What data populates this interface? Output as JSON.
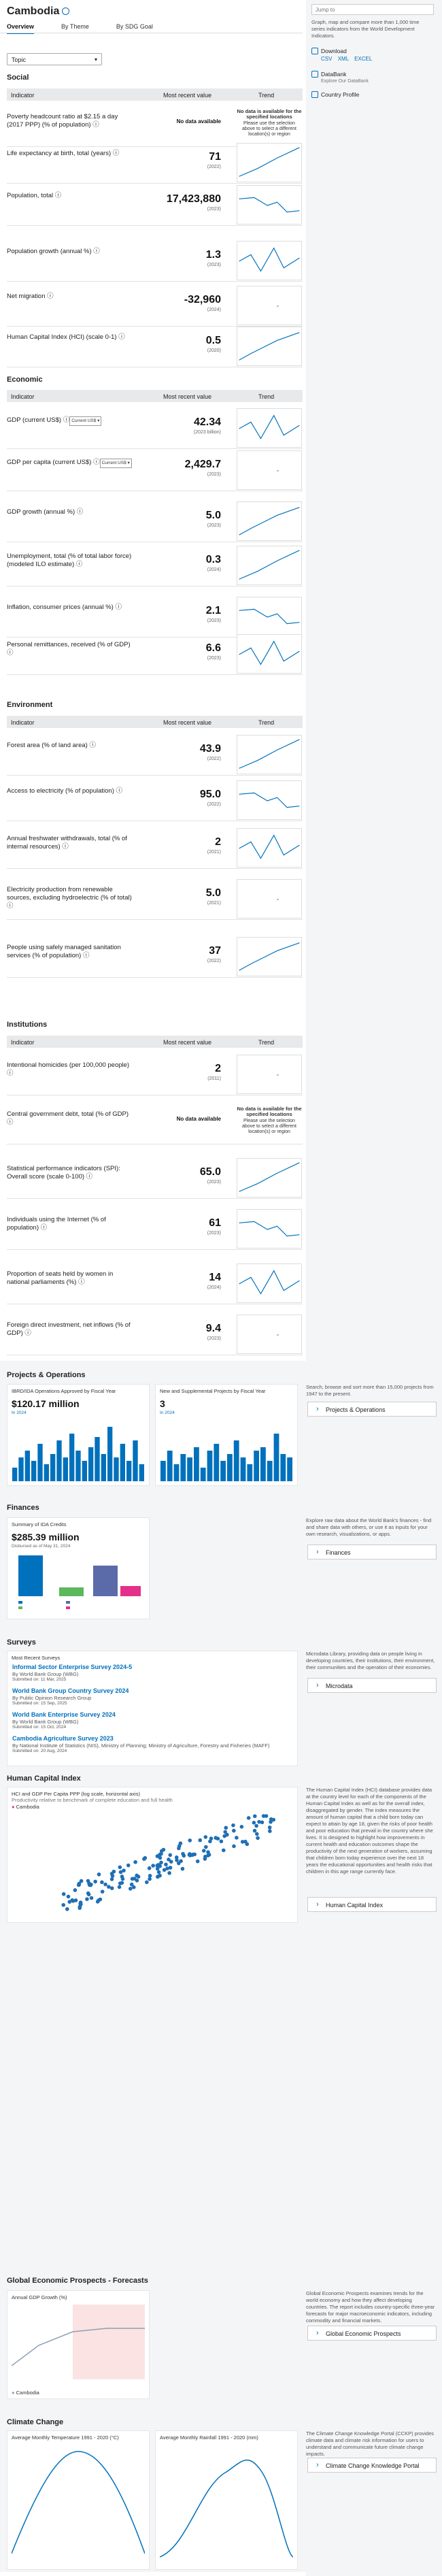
{
  "country": "Cambodia",
  "tabs": [
    "Overview",
    "By Theme",
    "By SDG Goal"
  ],
  "topic_label": "Topic",
  "rail": {
    "jump_placeholder": "Jump to",
    "intro": "Graph, map and compare more than 1,000 time series indicators from the World Development Indicators.",
    "download": "Download",
    "formats": [
      "CSV",
      "XML",
      "EXCEL"
    ],
    "databank": "DataBank",
    "databank_sub": "Explore Our DataBank",
    "profile": "Country Profile"
  },
  "table_headers": {
    "indicator": "Indicator",
    "value": "Most recent value",
    "trend": "Trend"
  },
  "no_data": "No data available",
  "no_data_trend_title": "No data is available for the specified locations",
  "no_data_trend_body": "Please use the selection above to select a different location(s) or region",
  "sections": [
    {
      "title": "Social",
      "rows": [
        {
          "label": "Poverty headcount ratio at $2.15 a day (2017 PPP) (% of population)",
          "value": "",
          "year": "",
          "nodata": true
        },
        {
          "label": "Life expectancy at birth, total (years)",
          "value": "71",
          "year": "(2022)"
        },
        {
          "label": "Population, total",
          "value": "17,423,880",
          "year": "(2023)"
        },
        {
          "label": "Population growth (annual %)",
          "value": "1.3",
          "year": "(2023)"
        },
        {
          "label": "Net migration",
          "value": "-32,960",
          "year": "(2024)"
        },
        {
          "label": "Human Capital Index (HCI) (scale 0-1)",
          "value": "0.5",
          "year": "(2020)"
        }
      ]
    },
    {
      "title": "Economic",
      "rows": [
        {
          "label": "GDP (current US$)",
          "select": "Current US$",
          "value": "42.34",
          "year": "(2023 billion)"
        },
        {
          "label": "GDP per capita (current US$)",
          "select": "Current US$",
          "value": "2,429.7",
          "year": "(2023)"
        },
        {
          "label": "GDP growth (annual %)",
          "value": "5.0",
          "year": "(2023)"
        },
        {
          "label": "Unemployment, total (% of total labor force) (modeled ILO estimate)",
          "value": "0.3",
          "year": "(2024)"
        },
        {
          "label": "Inflation, consumer prices (annual %)",
          "value": "2.1",
          "year": "(2023)"
        },
        {
          "label": "Personal remittances, received (% of GDP)",
          "value": "6.6",
          "year": "(2023)"
        }
      ]
    },
    {
      "title": "Environment",
      "rows": [
        {
          "label": "Forest area (% of land area)",
          "value": "43.9",
          "year": "(2022)"
        },
        {
          "label": "Access to electricity (% of population)",
          "value": "95.0",
          "year": "(2022)"
        },
        {
          "label": "Annual freshwater withdrawals, total (% of internal resources)",
          "value": "2",
          "year": "(2021)"
        },
        {
          "label": "Electricity production from renewable sources, excluding hydroelectric (% of total)",
          "value": "5.0",
          "year": "(2021)"
        },
        {
          "label": "People using safely managed sanitation services (% of population)",
          "value": "37",
          "year": "(2022)"
        }
      ]
    },
    {
      "title": "Institutions",
      "rows": [
        {
          "label": "Intentional homicides (per 100,000 people)",
          "value": "2",
          "year": "(2011)"
        },
        {
          "label": "Central government debt, total (% of GDP)",
          "value": "",
          "year": "",
          "nodata": true
        },
        {
          "label": "Statistical performance indicators (SPI): Overall score (scale 0-100)",
          "value": "65.0",
          "year": "(2023)"
        },
        {
          "label": "Individuals using the Internet (% of population)",
          "value": "61",
          "year": "(2023)"
        },
        {
          "label": "Proportion of seats held by women in national parliaments (%)",
          "value": "14",
          "year": "(2024)"
        },
        {
          "label": "Foreign direct investment, net inflows (% of GDP)",
          "value": "9.4",
          "year": "(2023)"
        }
      ]
    }
  ],
  "projects": {
    "title": "Projects & Operations",
    "c1_title": "IBRD/IDA Operations Approved by Fiscal Year",
    "c1_value": "$120.17 million",
    "c1_link": "In 2024",
    "c2_title": "New and Supplemental Projects by Fiscal Year",
    "c2_value": "3",
    "c2_link": "In 2024",
    "side": "Search, browse and sort more than 15,000 projects from 1947 to the present.",
    "button": "Projects & Operations"
  },
  "finances": {
    "title": "Finances",
    "c_title": "Summary of IDA Credits",
    "c_value": "$285.39 million",
    "c_link": "Disbursed as of May 31, 2024",
    "side": "Explore raw data about the World Bank's finances - find and share data with others, or use it as inputs for your own research, visualizations, or apps.",
    "button": "Finances"
  },
  "surveys": {
    "title": "Surveys",
    "label": "Most Recent Surveys",
    "items": [
      {
        "name": "Informal Sector Enterprise Survey 2024-5",
        "by": "By World Bank Group (WBG)",
        "date": "Submitted on: 11 Mar, 2025"
      },
      {
        "name": "World Bank Group Country Survey 2024",
        "by": "By Public Opinion Research Group",
        "date": "Submitted on: 15 Sep, 2025"
      },
      {
        "name": "World Bank Enterprise Survey 2024",
        "by": "By World Bank Group (WBG)",
        "date": "Submitted on: 15 Oct, 2024"
      },
      {
        "name": "Cambodia Agriculture Survey 2023",
        "by": "By National Institute of Statistics (NIS), Ministry of Planning; Ministry of Agriculture, Forestry and Fisheries (MAFF)",
        "date": "Submitted on: 20 Aug, 2024"
      }
    ],
    "side": "Microdata Library, providing data on people living in developing countries, their institutions, their environment, their communities and the operation of their economies.",
    "button": "Microdata"
  },
  "hci": {
    "title": "Human Capital Index",
    "c_title": "HCI and GDP Per Capita PPP (log scale, horizontal axis)",
    "c_sub": "Productivity relative to benchmark of complete education and full health",
    "legend": "Cambodia",
    "side": "The Human Capital Index (HCI) database provides data at the country level for each of the components of the Human Capital Index as well as for the overall index, disaggregated by gender. The index measures the amount of human capital that a child born today can expect to attain by age 18, given the risks of poor health and poor education that prevail in the country where she lives. It is designed to highlight how improvements in current health and education outcomes shape the productivity of the next generation of workers, assuming that children born today experience over the next 18 years the educational opportunities and health risks that children in this age range currently face.",
    "button": "Human Capital Index"
  },
  "gep": {
    "title": "Global Economic Prospects - Forecasts",
    "c_title": "Annual GDP Growth (%)",
    "legend": "Cambodia",
    "side": "Global Economic Prospects examines trends for the world economy and how they affect developing countries. The report includes country-specific three-year forecasts for major macroeconomic indicators, including commodity and financial markets.",
    "button": "Global Economic Prospects"
  },
  "climate": {
    "title": "Climate Change",
    "c1_title": "Average Monthly Temperature 1991 - 2020 (°C)",
    "c2_title": "Average Monthly Rainfall 1991 - 2020 (mm)",
    "side": "The Climate Change Knowledge Portal (CCKP) provides climate data and climate risk information for users to understand and communicate future climate change impacts.",
    "button": "Climate Change Knowledge Portal"
  }
}
